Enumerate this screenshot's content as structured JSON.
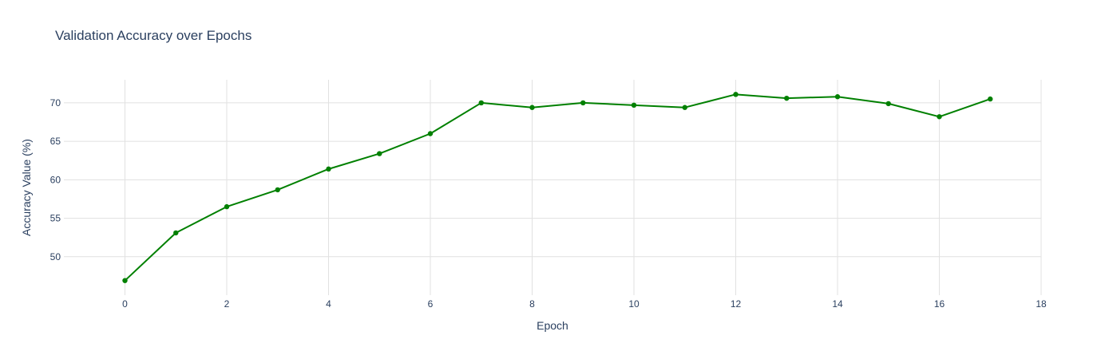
{
  "chart_data": {
    "type": "line",
    "title": "Validation Accuracy over Epochs",
    "xlabel": "Epoch",
    "ylabel": "Accuracy Value (%)",
    "xlim": [
      -1.2,
      18
    ],
    "ylim": [
      45,
      73
    ],
    "x_ticks": [
      0,
      2,
      4,
      6,
      8,
      10,
      12,
      14,
      16,
      18
    ],
    "y_ticks": [
      50,
      55,
      60,
      65,
      70
    ],
    "grid": true,
    "colors": {
      "line": "#008000",
      "grid": "#e1e1e1",
      "text": "#2a3f5f",
      "background": "#ffffff"
    },
    "x": [
      0,
      1,
      2,
      3,
      4,
      5,
      6,
      7,
      8,
      9,
      10,
      11,
      12,
      13,
      14,
      15,
      16,
      17
    ],
    "series": [
      {
        "values": [
          46.9,
          53.1,
          56.5,
          58.7,
          61.4,
          63.4,
          66.0,
          70.0,
          69.4,
          70.0,
          69.7,
          69.4,
          71.1,
          70.6,
          70.8,
          69.9,
          68.2,
          70.5
        ]
      }
    ]
  }
}
